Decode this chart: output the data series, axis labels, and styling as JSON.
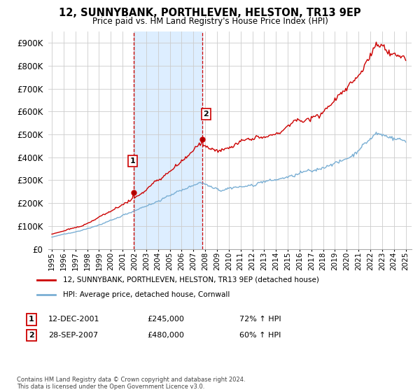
{
  "title": "12, SUNNYBANK, PORTHLEVEN, HELSTON, TR13 9EP",
  "subtitle": "Price paid vs. HM Land Registry's House Price Index (HPI)",
  "legend_line1": "12, SUNNYBANK, PORTHLEVEN, HELSTON, TR13 9EP (detached house)",
  "legend_line2": "HPI: Average price, detached house, Cornwall",
  "annotation1_label": "1",
  "annotation1_date": "12-DEC-2001",
  "annotation1_price": "£245,000",
  "annotation1_hpi": "72% ↑ HPI",
  "annotation2_label": "2",
  "annotation2_date": "28-SEP-2007",
  "annotation2_price": "£480,000",
  "annotation2_hpi": "60% ↑ HPI",
  "footnote": "Contains HM Land Registry data © Crown copyright and database right 2024.\nThis data is licensed under the Open Government Licence v3.0.",
  "red_color": "#cc0000",
  "blue_color": "#7aafd4",
  "highlight_color": "#ddeeff",
  "marker1_x": 2001.92,
  "marker1_y": 245000,
  "marker2_x": 2007.75,
  "marker2_y": 480000,
  "vline1_x": 2001.92,
  "vline2_x": 2007.75,
  "ylim_min": 0,
  "ylim_max": 950000,
  "xlim_min": 1994.7,
  "xlim_max": 2025.5,
  "yticks": [
    0,
    100000,
    200000,
    300000,
    400000,
    500000,
    600000,
    700000,
    800000,
    900000
  ]
}
